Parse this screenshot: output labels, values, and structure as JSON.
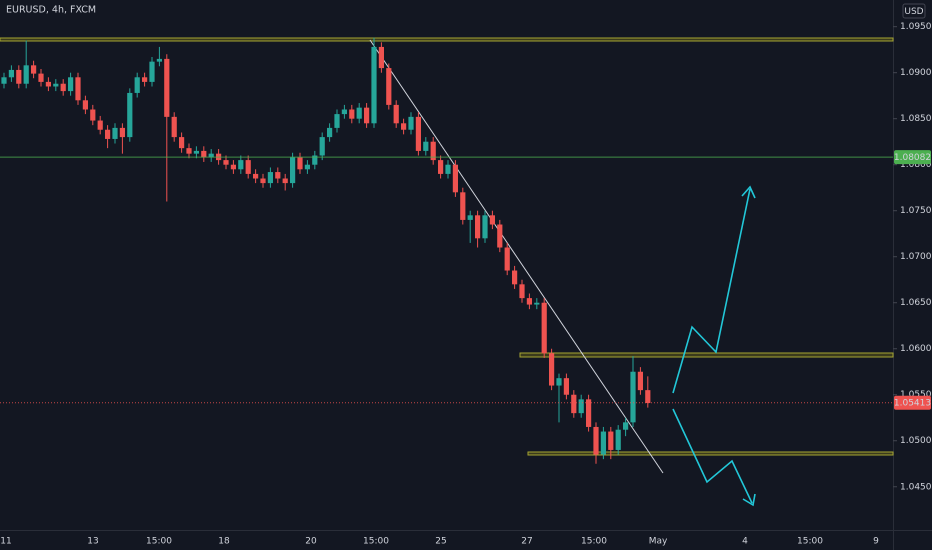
{
  "header": {
    "symbol": "EURUSD, 4h, FXCM",
    "currency": "USD"
  },
  "chart_data": {
    "type": "candlestick",
    "up_color": "#26a69a",
    "down_color": "#ef5350",
    "open": [
      1.0888,
      1.0895,
      1.0903,
      1.0888,
      1.0908,
      1.0899,
      1.089,
      1.0885,
      1.0888,
      1.088,
      1.0895,
      1.087,
      1.086,
      1.0848,
      1.0838,
      1.0828,
      1.084,
      1.083,
      1.0878,
      1.0895,
      1.089,
      1.0912,
      1.0915,
      1.0852,
      1.083,
      1.0818,
      1.0812,
      1.0815,
      1.0808,
      1.0812,
      1.0805,
      1.08,
      1.0795,
      1.0805,
      1.079,
      1.0785,
      1.078,
      1.0792,
      1.0785,
      1.078,
      1.0808,
      1.0795,
      1.08,
      1.081,
      1.083,
      1.084,
      1.0855,
      1.086,
      1.085,
      1.0862,
      1.0845,
      1.0928,
      1.0905,
      1.0865,
      1.0845,
      1.0838,
      1.0852,
      1.0815,
      1.0825,
      1.0805,
      1.079,
      1.08,
      1.077,
      1.074,
      1.0745,
      1.072,
      1.0745,
      1.0735,
      1.071,
      1.0685,
      1.067,
      1.0655,
      1.0648,
      1.065,
      1.0595,
      1.056,
      1.0568,
      1.055,
      1.053,
      1.0545,
      1.0515,
      1.0485,
      1.051,
      1.049,
      1.0512,
      1.052,
      1.0575,
      1.0555
    ],
    "high": [
      1.09,
      1.0908,
      1.0908,
      1.0935,
      1.0913,
      1.0904,
      1.0895,
      1.0893,
      1.0893,
      1.09,
      1.09,
      1.0875,
      1.0865,
      1.0853,
      1.0843,
      1.0845,
      1.0845,
      1.0883,
      1.09,
      1.09,
      1.0917,
      1.0928,
      1.092,
      1.0857,
      1.0835,
      1.0823,
      1.082,
      1.082,
      1.0817,
      1.0817,
      1.081,
      1.0805,
      1.081,
      1.081,
      1.0795,
      1.079,
      1.0797,
      1.0797,
      1.079,
      1.0813,
      1.0813,
      1.0805,
      1.0815,
      1.0835,
      1.0845,
      1.086,
      1.0865,
      1.0865,
      1.0867,
      1.0867,
      1.0938,
      1.0933,
      1.091,
      1.087,
      1.085,
      1.0857,
      1.0857,
      1.083,
      1.083,
      1.081,
      1.0805,
      1.0805,
      1.0775,
      1.075,
      1.075,
      1.075,
      1.075,
      1.074,
      1.0715,
      1.069,
      1.0675,
      1.066,
      1.0655,
      1.0655,
      1.06,
      1.0573,
      1.0573,
      1.0555,
      1.055,
      1.055,
      1.052,
      1.0515,
      1.0515,
      1.0517,
      1.0525,
      1.0592,
      1.058,
      1.057
    ],
    "low": [
      1.0883,
      1.089,
      1.0883,
      1.0883,
      1.0894,
      1.0885,
      1.088,
      1.088,
      1.0875,
      1.0875,
      1.0865,
      1.0855,
      1.0843,
      1.0833,
      1.0818,
      1.0823,
      1.0812,
      1.0825,
      1.0873,
      1.0885,
      1.0885,
      1.0907,
      1.076,
      1.0825,
      1.0813,
      1.0807,
      1.0807,
      1.0803,
      1.0803,
      1.08,
      1.0795,
      1.079,
      1.079,
      1.0785,
      1.078,
      1.0775,
      1.0775,
      1.078,
      1.0772,
      1.0775,
      1.079,
      1.079,
      1.0795,
      1.0805,
      1.0825,
      1.0835,
      1.085,
      1.0845,
      1.0845,
      1.084,
      1.084,
      1.09,
      1.086,
      1.084,
      1.0833,
      1.0833,
      1.081,
      1.081,
      1.08,
      1.0785,
      1.0785,
      1.0765,
      1.0735,
      1.0715,
      1.071,
      1.0715,
      1.073,
      1.0705,
      1.068,
      1.0665,
      1.065,
      1.0643,
      1.0643,
      1.059,
      1.0555,
      1.052,
      1.0545,
      1.0525,
      1.0525,
      1.051,
      1.0475,
      1.048,
      1.048,
      1.0485,
      1.0505,
      1.0515,
      1.055,
      1.0536
    ],
    "close": [
      1.0895,
      1.0903,
      1.0888,
      1.0908,
      1.0899,
      1.089,
      1.0885,
      1.0888,
      1.088,
      1.0895,
      1.087,
      1.086,
      1.0848,
      1.0838,
      1.0828,
      1.084,
      1.083,
      1.0878,
      1.0895,
      1.089,
      1.0912,
      1.0915,
      1.0852,
      1.083,
      1.0818,
      1.0812,
      1.0815,
      1.0808,
      1.0812,
      1.0805,
      1.08,
      1.0795,
      1.0805,
      1.079,
      1.0785,
      1.078,
      1.0792,
      1.0785,
      1.078,
      1.0808,
      1.0795,
      1.08,
      1.081,
      1.083,
      1.084,
      1.0855,
      1.086,
      1.085,
      1.0862,
      1.0845,
      1.0928,
      1.0905,
      1.0865,
      1.0845,
      1.0838,
      1.0852,
      1.0815,
      1.0825,
      1.0805,
      1.079,
      1.08,
      1.077,
      1.074,
      1.0745,
      1.072,
      1.0745,
      1.0735,
      1.071,
      1.0685,
      1.067,
      1.0655,
      1.0648,
      1.065,
      1.0595,
      1.056,
      1.0568,
      1.055,
      1.053,
      1.0545,
      1.0515,
      1.0485,
      1.051,
      1.049,
      1.0512,
      1.052,
      1.0575,
      1.0555,
      1.0541
    ],
    "ylim": [
      1.0403,
      1.0979
    ],
    "yticks": [
      {
        "value": 1.095,
        "label": "1.09500"
      },
      {
        "value": 1.09,
        "label": "1.09000"
      },
      {
        "value": 1.085,
        "label": "1.08500"
      },
      {
        "value": 1.08,
        "label": "1.08000"
      },
      {
        "value": 1.075,
        "label": "1.07500"
      },
      {
        "value": 1.07,
        "label": "1.07000"
      },
      {
        "value": 1.065,
        "label": "1.06500"
      },
      {
        "value": 1.06,
        "label": "1.06000"
      },
      {
        "value": 1.055,
        "label": "1.05500"
      },
      {
        "value": 1.05,
        "label": "1.05000"
      },
      {
        "value": 1.045,
        "label": "1.04500"
      }
    ],
    "x_labels": [
      "11",
      "13",
      "15:00",
      "18",
      "20",
      "15:00",
      "25",
      "27",
      "15:00",
      "May",
      "4",
      "15:00",
      "9"
    ],
    "price_labels": [
      {
        "value": 1.08082,
        "label": "1.08082",
        "color": "#4caf50"
      },
      {
        "value": 1.05413,
        "label": "1.05413",
        "color": "#ef5350"
      }
    ]
  }
}
